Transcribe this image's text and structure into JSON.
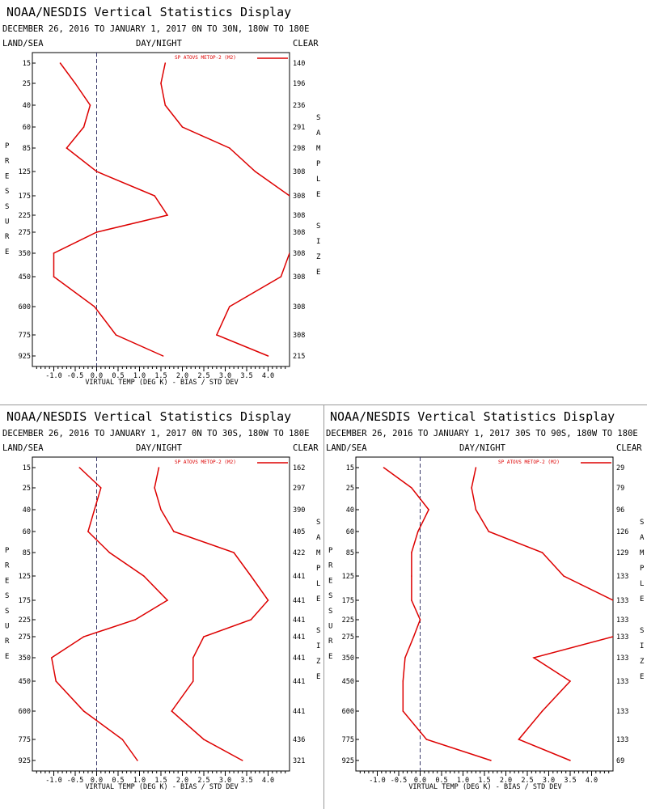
{
  "colors": {
    "series": "#dd0000",
    "axis": "#000000",
    "zero_line": "#3a3a6a"
  },
  "panels": [
    {
      "title": "NOAA/NESDIS Vertical Statistics Display",
      "subtitle": "DECEMBER 26, 2016 TO JANUARY 1, 2017",
      "region": "0N TO 30N, 180W TO 180E",
      "left_label": "LAND/SEA",
      "center_label": "DAY/NIGHT",
      "right_label": "CLEAR",
      "legend": "SP ATOVS METOP-2 (M2)",
      "xlabel": "VIRTUAL TEMP (DEG K) - BIAS / STD DEV",
      "ylabel": "PRESSURE",
      "y2label": "SAMPLE SIZE"
    },
    {
      "title": "NOAA/NESDIS Vertical Statistics Display",
      "subtitle": "DECEMBER 26, 2016 TO JANUARY 1, 2017",
      "region": "0N TO 30S, 180W TO 180E",
      "left_label": "LAND/SEA",
      "center_label": "DAY/NIGHT",
      "right_label": "CLEAR",
      "legend": "SP ATOVS METOP-2 (M2)",
      "xlabel": "VIRTUAL TEMP (DEG K) - BIAS / STD DEV",
      "ylabel": "PRESSURE",
      "y2label": "SAMPLE SIZE"
    },
    {
      "title": "NOAA/NESDIS Vertical Statistics Display",
      "subtitle": "DECEMBER 26, 2016 TO JANUARY 1, 2017",
      "region": "30S TO 90S, 180W TO 180E",
      "left_label": "LAND/SEA",
      "center_label": "DAY/NIGHT",
      "right_label": "CLEAR",
      "legend": "SP ATOVS METOP-2 (M2)",
      "xlabel": "VIRTUAL TEMP (DEG K) - BIAS / STD DEV",
      "ylabel": "PRESSURE",
      "y2label": "SAMPLE SIZE"
    }
  ],
  "chart_data": [
    {
      "type": "line",
      "title": "NOAA/NESDIS Vertical Statistics Display",
      "pressure_levels": [
        "15",
        "25",
        "40",
        "60",
        "85",
        "125",
        "175",
        "225",
        "275",
        "350",
        "450",
        "600",
        "775",
        "925"
      ],
      "x_ticks": [
        "-1.0",
        "-0.5",
        "0.0",
        "0.5",
        "1.0",
        "1.5",
        "2.0",
        "2.5",
        "3.0",
        "3.5",
        "4.0"
      ],
      "xlim": [
        -1.5,
        4.5
      ],
      "xlabel": "VIRTUAL TEMP (DEG K) - BIAS / STD DEV",
      "legend_position": "top-right",
      "series": [
        {
          "name": "SP ATOVS METOP-2 (M2)",
          "values": [
            -0.85,
            -0.5,
            -0.15,
            -0.3,
            -0.7,
            0.0,
            1.35,
            1.65,
            0.0,
            -1.0,
            -1.0,
            -0.05,
            0.45,
            1.55
          ]
        },
        {
          "values": [
            1.6,
            1.5,
            1.6,
            2.0,
            3.1,
            3.7,
            4.5,
            null,
            null,
            4.5,
            4.3,
            3.1,
            2.8,
            4.0
          ]
        }
      ],
      "sample_size": [
        "140",
        "196",
        "236",
        "291",
        "298",
        "308",
        "308",
        "308",
        "308",
        "308",
        "308",
        "308",
        "308",
        "215"
      ]
    },
    {
      "type": "line",
      "title": "NOAA/NESDIS Vertical Statistics Display",
      "pressure_levels": [
        "15",
        "25",
        "40",
        "60",
        "85",
        "125",
        "175",
        "225",
        "275",
        "350",
        "450",
        "600",
        "775",
        "925"
      ],
      "x_ticks": [
        "-1.0",
        "-0.5",
        "0.0",
        "0.5",
        "1.0",
        "1.5",
        "2.0",
        "2.5",
        "3.0",
        "3.5",
        "4.0"
      ],
      "xlim": [
        -1.5,
        4.5
      ],
      "xlabel": "VIRTUAL TEMP (DEG K) - BIAS / STD DEV",
      "legend_position": "top-right",
      "series": [
        {
          "name": "SP ATOVS METOP-2 (M2)",
          "values": [
            -0.4,
            0.1,
            -0.05,
            -0.2,
            0.3,
            1.1,
            1.65,
            0.9,
            -0.3,
            -1.05,
            -0.95,
            -0.3,
            0.6,
            0.95
          ]
        },
        {
          "values": [
            1.45,
            1.35,
            1.5,
            1.8,
            3.2,
            3.6,
            4.0,
            3.6,
            2.5,
            2.25,
            2.25,
            1.75,
            2.5,
            3.4
          ]
        }
      ],
      "sample_size": [
        "162",
        "297",
        "390",
        "405",
        "422",
        "441",
        "441",
        "441",
        "441",
        "441",
        "441",
        "441",
        "436",
        "321"
      ]
    },
    {
      "type": "line",
      "title": "NOAA/NESDIS Vertical Statistics Display",
      "pressure_levels": [
        "15",
        "25",
        "40",
        "60",
        "85",
        "125",
        "175",
        "225",
        "275",
        "350",
        "450",
        "600",
        "775",
        "925"
      ],
      "x_ticks": [
        "-1.0",
        "-0.5",
        "0.0",
        "0.5",
        "1.0",
        "1.5",
        "2.0",
        "2.5",
        "3.0",
        "3.5",
        "4.0"
      ],
      "xlim": [
        -1.5,
        4.5
      ],
      "xlabel": "VIRTUAL TEMP (DEG K) - BIAS / STD DEV",
      "legend_position": "top-right",
      "series": [
        {
          "name": "SP ATOVS METOP-2 (M2)",
          "values": [
            -0.85,
            -0.2,
            0.2,
            -0.05,
            -0.2,
            -0.2,
            -0.2,
            0.0,
            -0.15,
            -0.35,
            -0.4,
            -0.4,
            0.15,
            1.65
          ]
        },
        {
          "values": [
            1.3,
            1.2,
            1.3,
            1.6,
            2.85,
            3.35,
            4.5,
            null,
            4.5,
            2.65,
            3.5,
            2.85,
            2.3,
            3.5
          ]
        }
      ],
      "sample_size": [
        "29",
        "79",
        "96",
        "126",
        "129",
        "133",
        "133",
        "133",
        "133",
        "133",
        "133",
        "133",
        "133",
        "69"
      ]
    }
  ]
}
